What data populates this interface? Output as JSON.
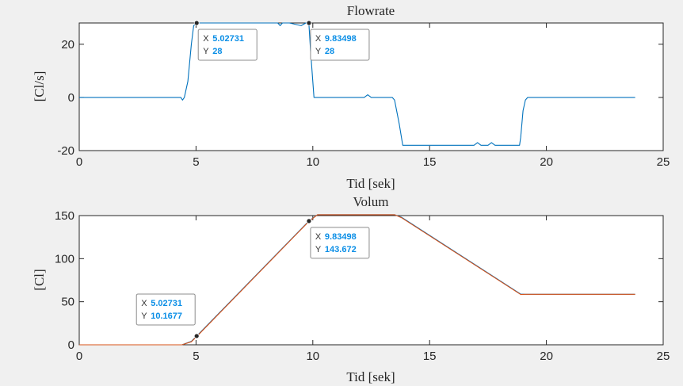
{
  "chart_data": [
    {
      "type": "line",
      "title": "Flowrate",
      "xlabel": "Tid [sek]",
      "ylabel": "[Cl/s]",
      "xlim": [
        0,
        25
      ],
      "ylim": [
        -20,
        28
      ],
      "xticks": [
        "0",
        "5",
        "10",
        "15",
        "20",
        "25"
      ],
      "yticks": [
        "-20",
        "0",
        "20"
      ],
      "grid": false,
      "series": [
        {
          "color": "#0072bd",
          "x": [
            0,
            4.35,
            4.42,
            4.5,
            4.65,
            4.8,
            4.9,
            5.03,
            6.5,
            8.5,
            8.6,
            8.7,
            9.0,
            9.5,
            9.7,
            9.83,
            9.9,
            10.05,
            10.2,
            12.2,
            12.35,
            12.5,
            13.4,
            13.5,
            13.7,
            13.85,
            14.0,
            16.9,
            17.05,
            17.2,
            17.5,
            17.65,
            17.8,
            18.85,
            18.9,
            19.0,
            19.1,
            19.2,
            20,
            23.8
          ],
          "y": [
            0,
            0,
            -1,
            0,
            6,
            20,
            27,
            28,
            28,
            28,
            27,
            28,
            28,
            27,
            28,
            28,
            18,
            0,
            0,
            0,
            1,
            0,
            0,
            -1,
            -10,
            -18,
            -18,
            -18,
            -17,
            -18,
            -18,
            -17,
            -18,
            -18,
            -15,
            -5,
            -1,
            0,
            0,
            0
          ]
        }
      ],
      "datatips": [
        {
          "x_label": "X",
          "x_value": "5.02731",
          "y_label": "Y",
          "y_value": "28"
        },
        {
          "x_label": "X",
          "x_value": "9.83498",
          "y_label": "Y",
          "y_value": "28"
        }
      ]
    },
    {
      "type": "line",
      "title": "Volum",
      "xlabel": "Tid [sek]",
      "ylabel": "[Cl]",
      "xlim": [
        0,
        25
      ],
      "ylim": [
        0,
        150
      ],
      "xticks": [
        "0",
        "5",
        "10",
        "15",
        "20",
        "25"
      ],
      "yticks": [
        "0",
        "50",
        "100",
        "150"
      ],
      "grid": false,
      "series": [
        {
          "color": "#0072bd",
          "x": [
            0,
            4.4,
            4.8,
            5.03,
            9.83,
            10.2,
            13.5,
            13.8,
            18.9,
            19.1,
            23.8
          ],
          "y": [
            0,
            0,
            4,
            10.1677,
            143.672,
            151,
            151,
            148,
            58.8,
            58.6,
            58.6
          ]
        },
        {
          "color": "#d95319",
          "x": [
            0,
            4.4,
            4.8,
            5.03,
            9.83,
            10.2,
            13.5,
            13.8,
            18.9,
            19.1,
            23.8
          ],
          "y": [
            0,
            0,
            3.5,
            9.6,
            143.2,
            151,
            151,
            147.5,
            58.4,
            58.6,
            58.6
          ]
        }
      ],
      "datatips": [
        {
          "x_label": "X",
          "x_value": "5.02731",
          "y_label": "Y",
          "y_value": "10.1677"
        },
        {
          "x_label": "X",
          "x_value": "9.83498",
          "y_label": "Y",
          "y_value": "143.672"
        }
      ]
    }
  ],
  "colors": {
    "datatip_value": "#0a8ee6",
    "axes_text": "#262626",
    "plot_background": "#ffffff",
    "figure_background": "#f0f0f0"
  }
}
